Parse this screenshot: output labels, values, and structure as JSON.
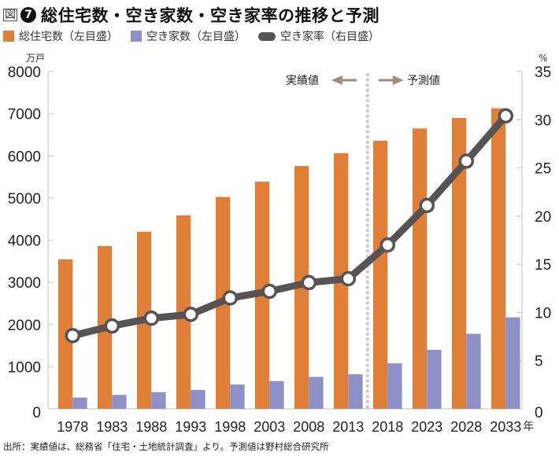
{
  "header": {
    "fig_label": "図",
    "fig_number": "7",
    "title": "総住宅数・空き家数・空き家率の推移と予測"
  },
  "legend": [
    {
      "label": "総住宅数（左目盛）",
      "color": "#E07F38",
      "shape": "square"
    },
    {
      "label": "空き家数（左目盛）",
      "color": "#8F90C8",
      "shape": "square"
    },
    {
      "label": "空き家率（右目盛）",
      "color": "#555353",
      "shape": "pill"
    }
  ],
  "source": "出所：実績値は、総務省「住宅・土地統計調査」より。予測値は野村総合研究所",
  "chart_data": {
    "type": "bar",
    "title": "総住宅数・空き家数・空き家率の推移と予測",
    "categories": [
      "1978",
      "1983",
      "1988",
      "1993",
      "1998",
      "2003",
      "2008",
      "2013",
      "2018",
      "2023",
      "2028",
      "2033"
    ],
    "x_unit": "年",
    "y_left": {
      "unit": "万戸",
      "range": [
        0,
        8000
      ],
      "ticks": [
        0,
        1000,
        2000,
        3000,
        4000,
        5000,
        6000,
        7000,
        8000
      ]
    },
    "y_right": {
      "unit": "%",
      "range": [
        0,
        35
      ],
      "ticks": [
        0,
        5,
        10,
        15,
        20,
        25,
        30,
        35
      ]
    },
    "series": [
      {
        "name": "総住宅数（左目盛）",
        "type": "bar",
        "axis": "left",
        "color": "#E07F38",
        "values": [
          3545,
          3861,
          4201,
          4588,
          5025,
          5389,
          5759,
          6063,
          6360,
          6650,
          6900,
          7130
        ]
      },
      {
        "name": "空き家数（左目盛）",
        "type": "bar",
        "axis": "left",
        "color": "#8F90C8",
        "values": [
          268,
          330,
          394,
          448,
          576,
          659,
          757,
          820,
          1080,
          1400,
          1780,
          2170
        ]
      },
      {
        "name": "空き家率（右目盛）",
        "type": "line",
        "axis": "right",
        "color": "#555353",
        "values": [
          7.6,
          8.6,
          9.4,
          9.8,
          11.5,
          12.2,
          13.1,
          13.5,
          17.0,
          21.1,
          25.7,
          30.4
        ]
      }
    ],
    "divider": {
      "after_category": "2013",
      "left_label": "実績値",
      "right_label": "予測値",
      "arrow_color": "#9E8E84"
    },
    "grid": false,
    "legend_position": "top-left"
  }
}
